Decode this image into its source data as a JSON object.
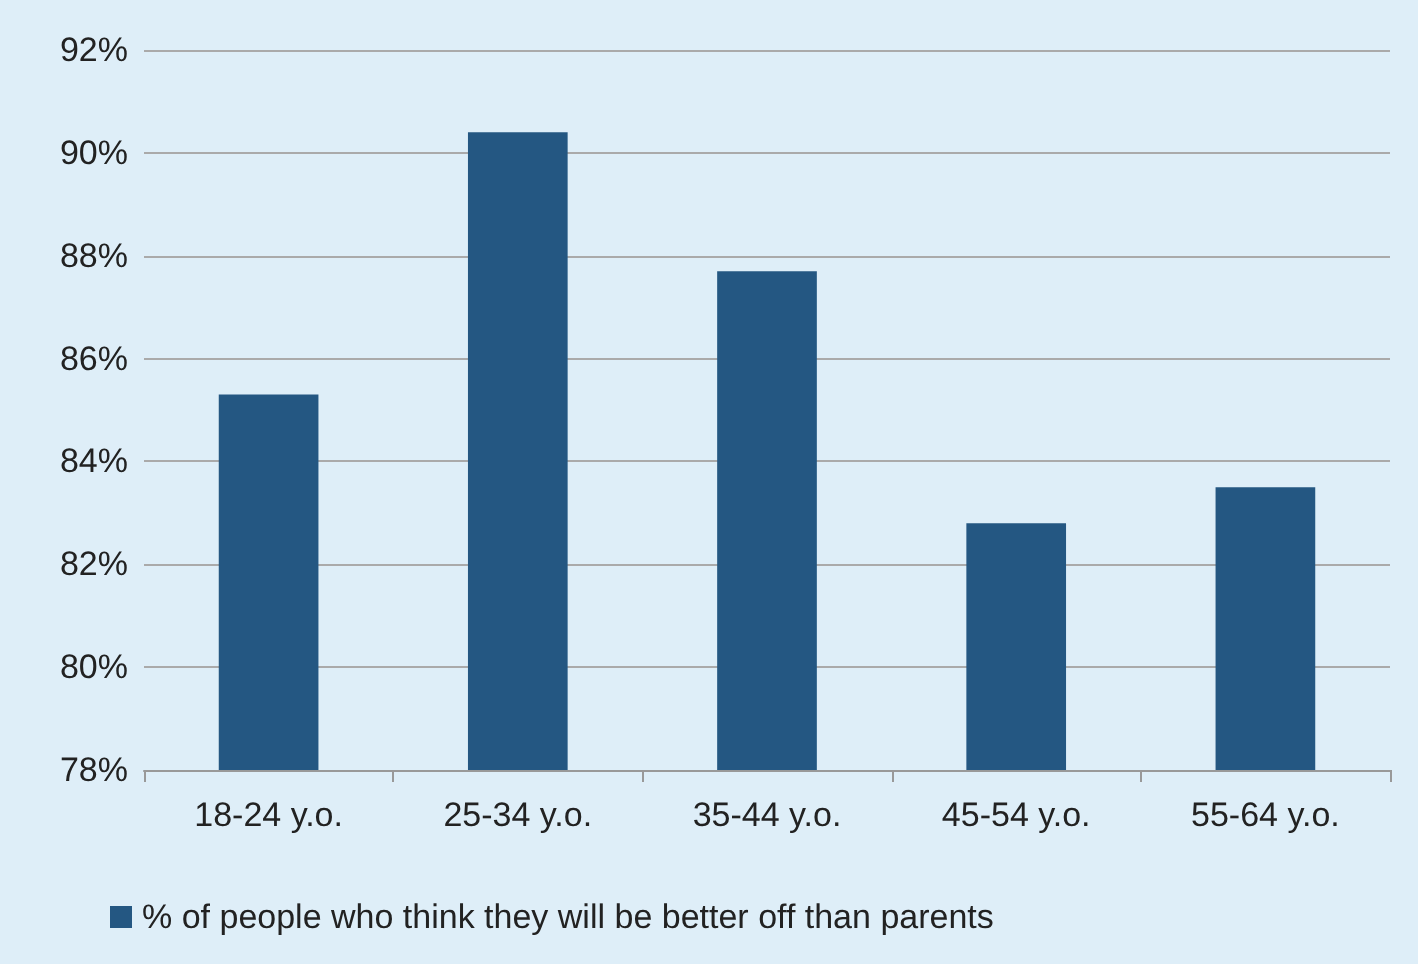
{
  "chart_data": {
    "type": "bar",
    "categories": [
      "18-24 y.o.",
      "25-34 y.o.",
      "35-44 y.o.",
      "45-54 y.o.",
      "55-64 y.o."
    ],
    "series": [
      {
        "name": "% of people who think they will be better off than parents",
        "color": "#245782",
        "values": [
          85.3,
          90.4,
          87.7,
          82.8,
          83.5
        ]
      }
    ],
    "ylim": [
      78,
      92
    ],
    "yticks": [
      {
        "value": 78,
        "label": "78%"
      },
      {
        "value": 80,
        "label": "80%"
      },
      {
        "value": 82,
        "label": "82%"
      },
      {
        "value": 84,
        "label": "84%"
      },
      {
        "value": 86,
        "label": "86%"
      },
      {
        "value": 88,
        "label": "88%"
      },
      {
        "value": 90,
        "label": "90%"
      },
      {
        "value": 92,
        "label": "92%"
      }
    ],
    "grid": "y",
    "legend": "bottom left"
  }
}
